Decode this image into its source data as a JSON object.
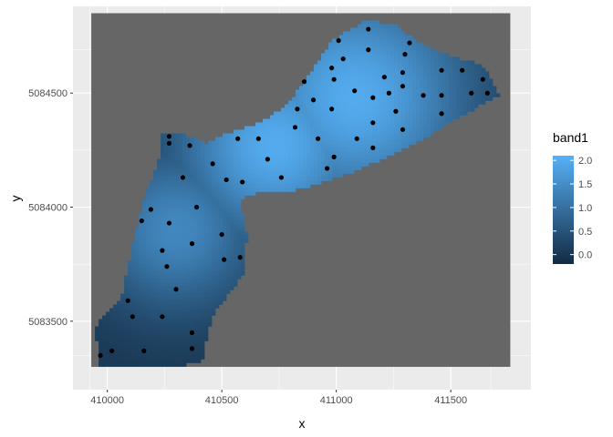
{
  "chart_data": {
    "type": "heatmap",
    "title": "",
    "xlabel": "x",
    "ylabel": "y",
    "xlim": [
      409850,
      411850
    ],
    "ylim": [
      5083200,
      5084880
    ],
    "x_ticks": [
      {
        "value": 410000,
        "label": "410000"
      },
      {
        "value": 410500,
        "label": "410500"
      },
      {
        "value": 411000,
        "label": "411000"
      },
      {
        "value": 411500,
        "label": "411500"
      }
    ],
    "y_ticks": [
      {
        "value": 5083500,
        "label": "5083500"
      },
      {
        "value": 5084000,
        "label": "5084000"
      },
      {
        "value": 5084500,
        "label": "5084500"
      }
    ],
    "grid": true,
    "raster_extent": {
      "x": [
        409930,
        411760
      ],
      "y": [
        5083300,
        5084850
      ]
    },
    "raster_background": "#666666",
    "panel_background": "#ebebeb",
    "region_outline": [
      [
        409960,
        5083300
      ],
      [
        409950,
        5083480
      ],
      [
        410060,
        5083600
      ],
      [
        410140,
        5083960
      ],
      [
        410180,
        5084090
      ],
      [
        410230,
        5084220
      ],
      [
        410240,
        5084330
      ],
      [
        410310,
        5084330
      ],
      [
        410440,
        5084280
      ],
      [
        410540,
        5084330
      ],
      [
        410660,
        5084370
      ],
      [
        410780,
        5084440
      ],
      [
        410870,
        5084560
      ],
      [
        410980,
        5084730
      ],
      [
        411130,
        5084820
      ],
      [
        411260,
        5084800
      ],
      [
        411360,
        5084720
      ],
      [
        411500,
        5084660
      ],
      [
        411590,
        5084640
      ],
      [
        411660,
        5084600
      ],
      [
        411710,
        5084490
      ],
      [
        411620,
        5084440
      ],
      [
        411510,
        5084380
      ],
      [
        411380,
        5084300
      ],
      [
        411220,
        5084220
      ],
      [
        411060,
        5084150
      ],
      [
        410920,
        5084100
      ],
      [
        410760,
        5084060
      ],
      [
        410640,
        5084060
      ],
      [
        410580,
        5084040
      ],
      [
        410610,
        5083880
      ],
      [
        410600,
        5083720
      ],
      [
        410560,
        5083650
      ],
      [
        410480,
        5083560
      ],
      [
        410440,
        5083460
      ],
      [
        410420,
        5083330
      ],
      [
        410320,
        5083300
      ],
      [
        410140,
        5083300
      ],
      [
        409990,
        5083300
      ]
    ],
    "surface_peaks": [
      {
        "x": 410730,
        "y": 5084270,
        "value": 2.0,
        "radius": 300
      },
      {
        "x": 411080,
        "y": 5084480,
        "value": 2.0,
        "radius": 350
      },
      {
        "x": 410300,
        "y": 5083900,
        "value": 1.4,
        "radius": 250
      }
    ],
    "legend": {
      "title": "band1",
      "position": "right",
      "range": [
        -0.2,
        2.1
      ],
      "breaks": [
        {
          "value": 2.0,
          "label": "2.0"
        },
        {
          "value": 1.5,
          "label": "1.5"
        },
        {
          "value": 1.0,
          "label": "1.0"
        },
        {
          "value": 0.5,
          "label": "0.5"
        },
        {
          "value": 0.0,
          "label": "0.0"
        }
      ],
      "low_color": "#132b43",
      "high_color": "#56b1f7"
    },
    "points": [
      [
        409970,
        5083350
      ],
      [
        410020,
        5083370
      ],
      [
        410160,
        5083370
      ],
      [
        410370,
        5083380
      ],
      [
        410370,
        5083450
      ],
      [
        410110,
        5083520
      ],
      [
        410240,
        5083520
      ],
      [
        410090,
        5083590
      ],
      [
        410300,
        5083640
      ],
      [
        410260,
        5083740
      ],
      [
        410580,
        5083780
      ],
      [
        410510,
        5083770
      ],
      [
        410240,
        5083810
      ],
      [
        410370,
        5083840
      ],
      [
        410500,
        5083880
      ],
      [
        410270,
        5083930
      ],
      [
        410150,
        5083940
      ],
      [
        410190,
        5083990
      ],
      [
        410390,
        5084000
      ],
      [
        410330,
        5084130
      ],
      [
        410520,
        5084120
      ],
      [
        410590,
        5084110
      ],
      [
        410760,
        5084130
      ],
      [
        410460,
        5084190
      ],
      [
        410700,
        5084210
      ],
      [
        410360,
        5084270
      ],
      [
        410270,
        5084280
      ],
      [
        410270,
        5084310
      ],
      [
        410570,
        5084300
      ],
      [
        410660,
        5084300
      ],
      [
        410920,
        5084300
      ],
      [
        411090,
        5084300
      ],
      [
        411160,
        5084260
      ],
      [
        410990,
        5084220
      ],
      [
        410960,
        5084170
      ],
      [
        410820,
        5084350
      ],
      [
        411160,
        5084370
      ],
      [
        410980,
        5084430
      ],
      [
        410830,
        5084430
      ],
      [
        410900,
        5084470
      ],
      [
        411260,
        5084420
      ],
      [
        411290,
        5084340
      ],
      [
        411460,
        5084410
      ],
      [
        411160,
        5084480
      ],
      [
        411080,
        5084510
      ],
      [
        411230,
        5084500
      ],
      [
        411380,
        5084490
      ],
      [
        411460,
        5084490
      ],
      [
        411590,
        5084500
      ],
      [
        411290,
        5084530
      ],
      [
        410860,
        5084550
      ],
      [
        410990,
        5084560
      ],
      [
        411210,
        5084570
      ],
      [
        411290,
        5084590
      ],
      [
        411460,
        5084600
      ],
      [
        411550,
        5084600
      ],
      [
        411640,
        5084560
      ],
      [
        410980,
        5084610
      ],
      [
        411030,
        5084650
      ],
      [
        411140,
        5084690
      ],
      [
        411010,
        5084730
      ],
      [
        411300,
        5084670
      ],
      [
        411320,
        5084720
      ],
      [
        411140,
        5084780
      ],
      [
        411660,
        5084500
      ]
    ]
  }
}
